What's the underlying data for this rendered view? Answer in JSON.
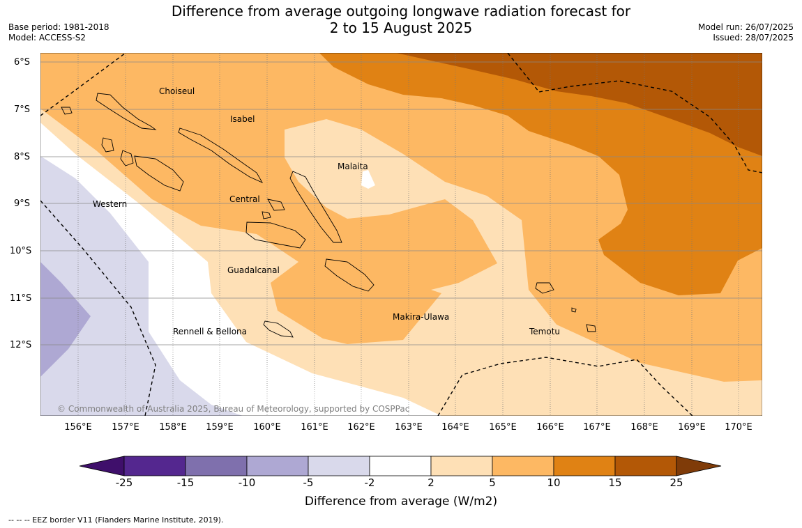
{
  "title_line1": "Difference from average outgoing longwave radiation forecast for",
  "title_line2": "2 to 15 August 2025",
  "meta_left": [
    "Base period: 1981-2018",
    "Model: ACCESS-S2"
  ],
  "meta_right": [
    "Model run: 26/07/2025",
    "Issued: 28/07/2025"
  ],
  "latitudes": [
    "6°S",
    "7°S",
    "8°S",
    "9°S",
    "10°S",
    "11°S",
    "12°S"
  ],
  "longitudes": [
    "156°E",
    "157°E",
    "158°E",
    "159°E",
    "160°E",
    "161°E",
    "162°E",
    "163°E",
    "164°E",
    "165°E",
    "166°E",
    "167°E",
    "168°E",
    "169°E",
    "170°E"
  ],
  "regions": [
    "Choiseul",
    "Isabel",
    "Malaita",
    "Western",
    "Central",
    "Guadalcanal",
    "Makira-Ulawa",
    "Rennell & Bellona",
    "Temotu"
  ],
  "copyright": "© Commonwealth of Australia 2025, Bureau of Meteorology, supported by COSPPac",
  "colorbar": {
    "ticks": [
      "-25",
      "-15",
      "-10",
      "-5",
      "-2",
      "2",
      "5",
      "10",
      "15",
      "25"
    ],
    "colors": [
      "#3f0f6b",
      "#54278f",
      "#7f70ad",
      "#aea8d3",
      "#d9d9eb",
      "#ffffff",
      "#fee0b6",
      "#fdb863",
      "#e08214",
      "#b35806",
      "#7f3b08"
    ],
    "label": "Difference from average (W/m2)"
  },
  "legend": "--  --  -- EEZ border V11 (Flanders Marine Institute, 2019)."
}
